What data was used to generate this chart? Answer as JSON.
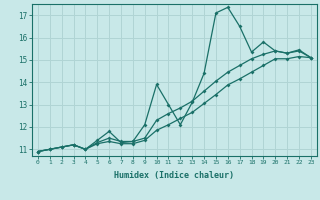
{
  "xlabel": "Humidex (Indice chaleur)",
  "background_color": "#c8e8e8",
  "grid_color": "#b0d4d4",
  "line_color": "#1a7068",
  "xlim": [
    -0.5,
    23.5
  ],
  "ylim": [
    10.7,
    17.5
  ],
  "yticks": [
    11,
    12,
    13,
    14,
    15,
    16,
    17
  ],
  "xticks": [
    0,
    1,
    2,
    3,
    4,
    5,
    6,
    7,
    8,
    9,
    10,
    11,
    12,
    13,
    14,
    15,
    16,
    17,
    18,
    19,
    20,
    21,
    22,
    23
  ],
  "line1_x": [
    0,
    1,
    2,
    3,
    4,
    5,
    6,
    7,
    8,
    9,
    10,
    11,
    12,
    13,
    14,
    15,
    16,
    17,
    18,
    19,
    20,
    21,
    22,
    23
  ],
  "line1_y": [
    10.9,
    11.0,
    11.1,
    11.2,
    11.0,
    11.4,
    11.8,
    11.3,
    11.35,
    12.1,
    13.9,
    13.0,
    12.1,
    13.1,
    14.4,
    17.1,
    17.35,
    16.5,
    15.35,
    15.8,
    15.4,
    15.3,
    15.45,
    15.1
  ],
  "line2_x": [
    0,
    1,
    2,
    3,
    4,
    5,
    6,
    7,
    8,
    9,
    10,
    11,
    12,
    13,
    14,
    15,
    16,
    17,
    18,
    19,
    20,
    21,
    22,
    23
  ],
  "line2_y": [
    10.9,
    11.0,
    11.1,
    11.2,
    11.0,
    11.3,
    11.5,
    11.35,
    11.35,
    11.5,
    12.3,
    12.6,
    12.85,
    13.15,
    13.6,
    14.05,
    14.45,
    14.75,
    15.05,
    15.25,
    15.4,
    15.3,
    15.4,
    15.1
  ],
  "line3_x": [
    0,
    1,
    2,
    3,
    4,
    5,
    6,
    7,
    8,
    9,
    10,
    11,
    12,
    13,
    14,
    15,
    16,
    17,
    18,
    19,
    20,
    21,
    22,
    23
  ],
  "line3_y": [
    10.9,
    11.0,
    11.1,
    11.2,
    11.0,
    11.25,
    11.35,
    11.25,
    11.25,
    11.4,
    11.85,
    12.1,
    12.38,
    12.65,
    13.05,
    13.45,
    13.88,
    14.15,
    14.45,
    14.75,
    15.05,
    15.05,
    15.15,
    15.1
  ]
}
